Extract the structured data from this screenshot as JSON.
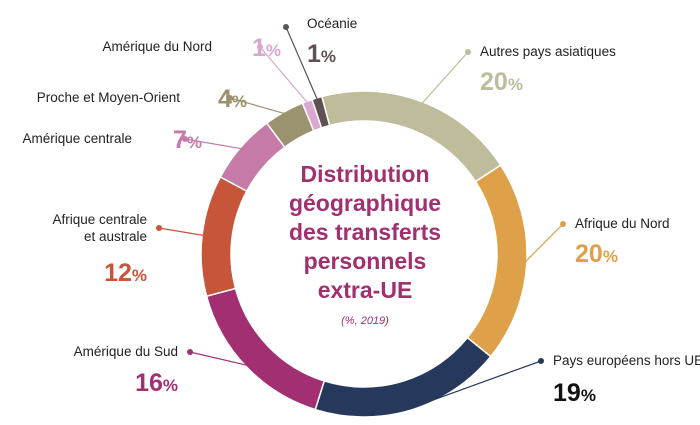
{
  "chart_data": {
    "type": "pie",
    "title_lines": [
      "Distribution",
      "géographique",
      "des transferts",
      "personnels",
      "extra-UE"
    ],
    "subtitle": "(%, 2019)",
    "unit": "%",
    "slices": [
      {
        "label": "Autres pays asiatiques",
        "value": 20,
        "color": "#bfbc9c"
      },
      {
        "label": "Afrique du Nord",
        "value": 20,
        "color": "#dea14a"
      },
      {
        "label": "Pays européens hors UE",
        "value": 19,
        "color": "#26395c"
      },
      {
        "label": "Amérique du Sud",
        "value": 16,
        "color": "#a22f71"
      },
      {
        "label": "Afrique centrale",
        "label2": "et australe",
        "value": 12,
        "color": "#c6553a"
      },
      {
        "label": "Amérique centrale",
        "value": 7,
        "color": "#c67aa8"
      },
      {
        "label": "Proche et Moyen-Orient",
        "value": 4,
        "color": "#9b9270"
      },
      {
        "label": "Amérique du Nord",
        "value": 1,
        "color": "#dba6cf"
      },
      {
        "label": "Océanie",
        "value": 1,
        "color": "#5d5151"
      }
    ]
  }
}
